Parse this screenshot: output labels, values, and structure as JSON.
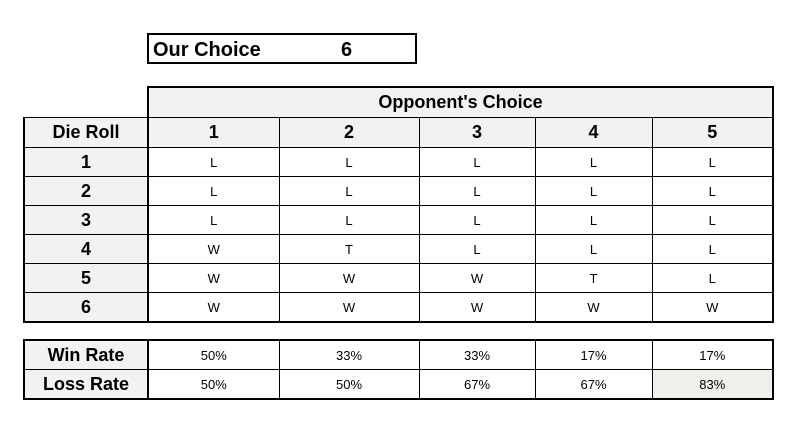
{
  "our_choice": {
    "label": "Our Choice",
    "value": "6"
  },
  "opponent_header": "Opponent's Choice",
  "die_roll_header": "Die Roll",
  "columns": [
    "1",
    "2",
    "3",
    "4",
    "5"
  ],
  "rows": [
    {
      "roll": "1",
      "results": [
        "L",
        "L",
        "L",
        "L",
        "L"
      ]
    },
    {
      "roll": "2",
      "results": [
        "L",
        "L",
        "L",
        "L",
        "L"
      ]
    },
    {
      "roll": "3",
      "results": [
        "L",
        "L",
        "L",
        "L",
        "L"
      ]
    },
    {
      "roll": "4",
      "results": [
        "W",
        "T",
        "L",
        "L",
        "L"
      ]
    },
    {
      "roll": "5",
      "results": [
        "W",
        "W",
        "W",
        "T",
        "L"
      ]
    },
    {
      "roll": "6",
      "results": [
        "W",
        "W",
        "W",
        "W",
        "W"
      ]
    }
  ],
  "win_rate": {
    "label": "Win Rate",
    "values": [
      "50%",
      "33%",
      "33%",
      "17%",
      "17%"
    ]
  },
  "loss_rate": {
    "label": "Loss Rate",
    "values": [
      "50%",
      "50%",
      "67%",
      "67%",
      "83%"
    ]
  },
  "highlight_color": "#edf1e7"
}
